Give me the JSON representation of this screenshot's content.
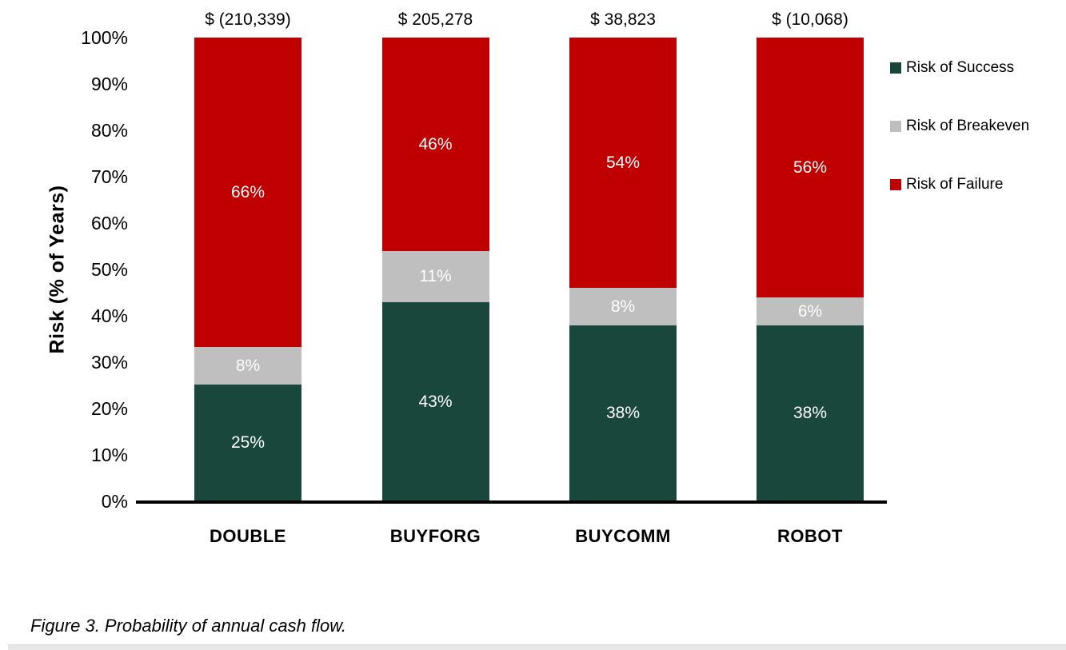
{
  "figure": {
    "caption": "Figure 3. Probability of annual cash flow."
  },
  "chart_data": {
    "type": "bar",
    "stacked": true,
    "percent_stacked": true,
    "title": "",
    "xlabel": "",
    "ylabel": "Risk (% of Years)",
    "ylim": [
      0,
      100
    ],
    "y_ticks": [
      "0%",
      "10%",
      "20%",
      "30%",
      "40%",
      "50%",
      "60%",
      "70%",
      "80%",
      "90%",
      "100%"
    ],
    "grid": false,
    "legend_position": "right",
    "categories": [
      "DOUBLE",
      "BUYFORG",
      "BUYCOMM",
      "ROBOT"
    ],
    "bar_top_labels": [
      "$ (210,339)",
      "$ 205,278",
      "$ 38,823",
      "$ (10,068)"
    ],
    "series": [
      {
        "name": "Risk of Success",
        "color": "#1A473B",
        "values": [
          25,
          43,
          38,
          38
        ],
        "labels": [
          "25%",
          "43%",
          "38%",
          "38%"
        ]
      },
      {
        "name": "Risk of Breakeven",
        "color": "#BFBFBF",
        "values": [
          8,
          11,
          8,
          6
        ],
        "labels": [
          "8%",
          "11%",
          "8%",
          "6%"
        ]
      },
      {
        "name": "Risk of Failure",
        "color": "#C00000",
        "values": [
          66,
          46,
          54,
          56
        ],
        "labels": [
          "66%",
          "46%",
          "54%",
          "56%"
        ]
      }
    ],
    "colors": {
      "axis": "#000000",
      "text": "#000000",
      "segment_label_text": "#FFFFFF",
      "background": "#FFFFFF"
    }
  }
}
